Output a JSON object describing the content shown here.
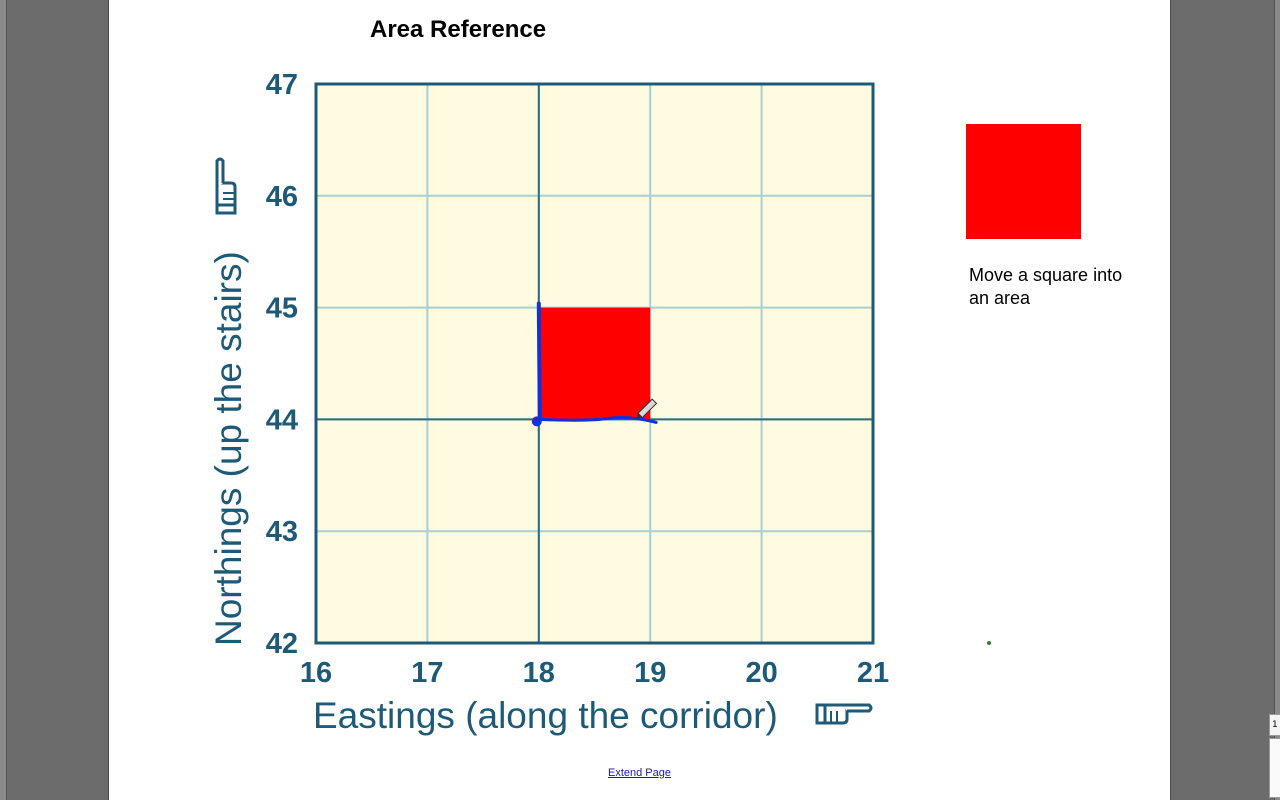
{
  "title": "Area Reference",
  "grid": {
    "x_ticks": [
      "16",
      "17",
      "18",
      "19",
      "20",
      "21"
    ],
    "y_ticks": [
      "42",
      "43",
      "44",
      "45",
      "46",
      "47"
    ],
    "x_label": "Eastings (along the corridor)",
    "y_label": "Northings (up the stairs)",
    "x_range": [
      16,
      21
    ],
    "y_range": [
      42,
      47
    ],
    "highlighted_square": {
      "easting": 18,
      "northing": 44,
      "color": "#ff0000"
    },
    "grid_fill": "#fefbe1",
    "grid_line_color": "#a9cfd0",
    "axis_color": "#1c5a78",
    "pointing-hand-icon": "pointing-hand"
  },
  "legend": {
    "square_color": "#ff0000",
    "instruction": "Move a square into an area"
  },
  "footer": {
    "extend_link": "Extend Page"
  }
}
